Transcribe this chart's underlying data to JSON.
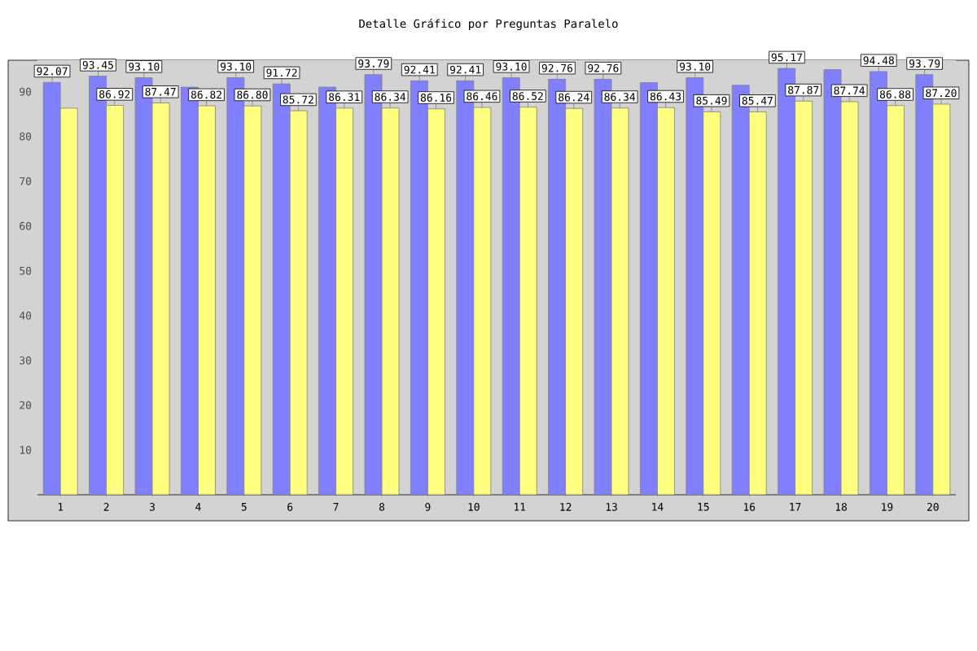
{
  "chart_data": {
    "type": "bar",
    "title": "Detalle Gráfico por Preguntas Paralelo",
    "categories": [
      "1",
      "2",
      "3",
      "4",
      "5",
      "6",
      "7",
      "8",
      "9",
      "10",
      "11",
      "12",
      "13",
      "14",
      "15",
      "16",
      "17",
      "18",
      "19",
      "20"
    ],
    "series": [
      {
        "color": "#8080ff",
        "values": [
          92.07,
          93.45,
          93.1,
          91.0,
          93.1,
          91.72,
          91.0,
          93.79,
          92.41,
          92.41,
          93.1,
          92.76,
          92.76,
          92.0,
          93.1,
          91.4,
          95.17,
          94.9,
          94.48,
          93.79
        ],
        "value_labels": [
          "92.07",
          "93.45",
          "93.10",
          null,
          "93.10",
          "91.72",
          null,
          "93.79",
          "92.41",
          "92.41",
          "93.10",
          "92.76",
          "92.76",
          null,
          "93.10",
          null,
          "95.17",
          null,
          "94.48",
          "93.79"
        ]
      },
      {
        "color": "#ffff80",
        "values": [
          86.3,
          86.92,
          87.47,
          86.82,
          86.8,
          85.72,
          86.31,
          86.34,
          86.16,
          86.46,
          86.52,
          86.24,
          86.34,
          86.43,
          85.49,
          85.47,
          87.87,
          87.74,
          86.88,
          87.2
        ],
        "value_labels": [
          null,
          "86.92",
          "87.47",
          "86.82",
          "86.80",
          "85.72",
          "86.31",
          "86.34",
          "86.16",
          "86.46",
          "86.52",
          "86.24",
          "86.34",
          "86.43",
          "85.49",
          "85.47",
          "87.87",
          "87.74",
          "86.88",
          "87.20"
        ]
      }
    ],
    "ylim": [
      0,
      97
    ],
    "yticks": [
      10,
      20,
      30,
      40,
      50,
      60,
      70,
      80,
      90
    ]
  }
}
